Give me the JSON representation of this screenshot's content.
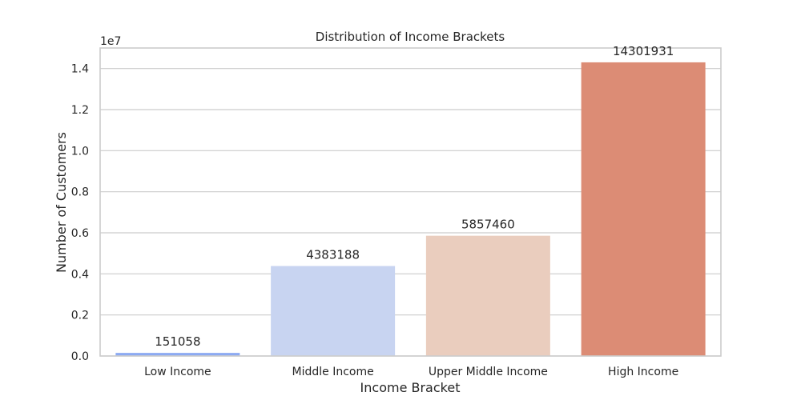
{
  "chart_data": {
    "type": "bar",
    "title": "Distribution of Income Brackets",
    "xlabel": "Income Bracket",
    "ylabel": "Number of Customers",
    "offset_label": "1e7",
    "categories": [
      "Low Income",
      "Middle Income",
      "Upper Middle Income",
      "High Income"
    ],
    "values": [
      151058,
      4383188,
      5857460,
      14301931
    ],
    "value_labels": [
      "151058",
      "4383188",
      "5857460",
      "14301931"
    ],
    "colors": [
      "#8caaf2",
      "#c8d4f1",
      "#eacdbe",
      "#dc8c75"
    ],
    "ylim": [
      0,
      15000000
    ],
    "yticks": [
      0,
      2000000,
      4000000,
      6000000,
      8000000,
      10000000,
      12000000,
      14000000
    ],
    "ytick_labels": [
      "0.0",
      "0.2",
      "0.4",
      "0.6",
      "0.8",
      "1.0",
      "1.2",
      "1.4"
    ],
    "grid": "y",
    "style": "seaborn-whitegrid"
  }
}
